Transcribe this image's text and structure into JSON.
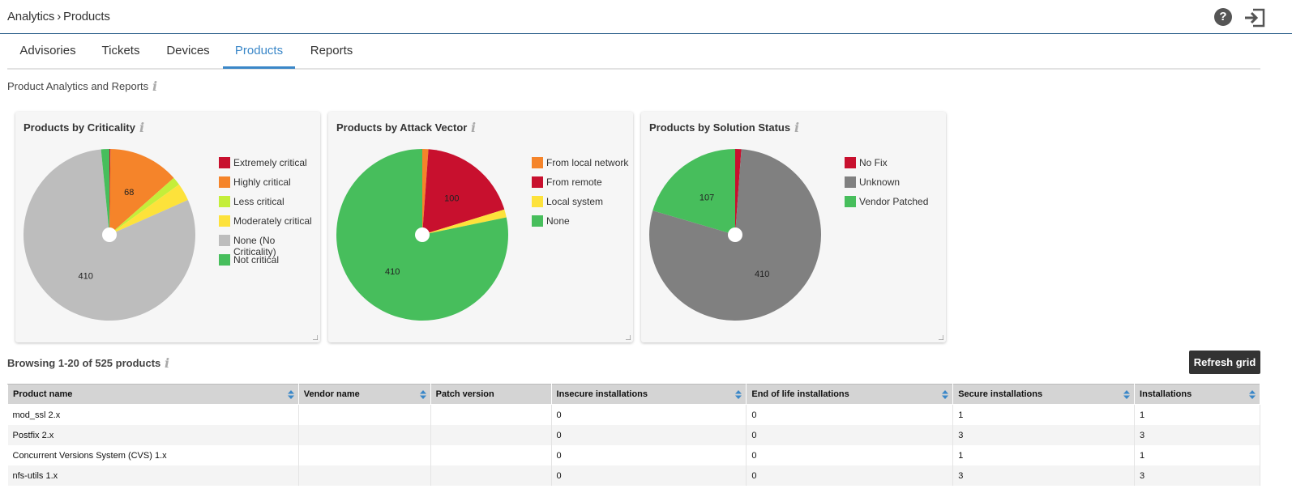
{
  "header": {
    "breadcrumb_root": "Analytics",
    "breadcrumb_sep": "›",
    "breadcrumb_current": "Products",
    "help_label": "?"
  },
  "tabs": [
    {
      "label": "Advisories"
    },
    {
      "label": "Tickets"
    },
    {
      "label": "Devices"
    },
    {
      "label": "Products",
      "active": true
    },
    {
      "label": "Reports"
    }
  ],
  "section_title": "Product Analytics and Reports",
  "charts": {
    "criticality": {
      "title": "Products by Criticality",
      "legend": [
        "Extremely critical",
        "Highly critical",
        "Less critical",
        "Moderately critical",
        "None (No Criticality)",
        "Not critical"
      ],
      "colors": [
        "#c8102e",
        "#f5842a",
        "#c4ee3a",
        "#fde23b",
        "#bdbdbd",
        "#47be5c"
      ]
    },
    "attack_vector": {
      "title": "Products by Attack Vector",
      "legend": [
        "From local network",
        "From remote",
        "Local system",
        "None"
      ],
      "colors": [
        "#f5842a",
        "#c8102e",
        "#fde23b",
        "#47be5c"
      ]
    },
    "solution_status": {
      "title": "Products by Solution Status",
      "legend": [
        "No Fix",
        "Unknown",
        "Vendor Patched"
      ],
      "colors": [
        "#c8102e",
        "#808080",
        "#47be5c"
      ]
    }
  },
  "chart_data": [
    {
      "type": "pie",
      "title": "Products by Criticality",
      "categories": [
        "Extremely critical",
        "Highly critical",
        "Less critical",
        "Moderately critical",
        "None (No Criticality)",
        "Not critical"
      ],
      "values": [
        1,
        68,
        8,
        17,
        410,
        8
      ],
      "data_labels": [
        "",
        "68",
        "",
        "",
        "410",
        ""
      ]
    },
    {
      "type": "pie",
      "title": "Products by Attack Vector",
      "categories": [
        "From local network",
        "From remote",
        "Local system",
        "None"
      ],
      "values": [
        6,
        100,
        8,
        410
      ],
      "data_labels": [
        "",
        "100",
        "",
        "410"
      ]
    },
    {
      "type": "pie",
      "title": "Products by Solution Status",
      "categories": [
        "No Fix",
        "Unknown",
        "Vendor Patched"
      ],
      "values": [
        6,
        410,
        107
      ],
      "data_labels": [
        "",
        "410",
        "107"
      ]
    }
  ],
  "browse_text": "Browsing 1-20 of 525 products",
  "refresh_label": "Refresh grid",
  "grid": {
    "columns": [
      "Product name",
      "Vendor name",
      "Patch version",
      "Insecure installations",
      "End of life installations",
      "Secure installations",
      "Installations"
    ],
    "rows": [
      [
        "mod_ssl 2.x",
        "",
        "",
        "0",
        "0",
        "1",
        "1"
      ],
      [
        "Postfix 2.x",
        "",
        "",
        "0",
        "0",
        "3",
        "3"
      ],
      [
        "Concurrent Versions System (CVS) 1.x",
        "",
        "",
        "0",
        "0",
        "1",
        "1"
      ],
      [
        "nfs-utils 1.x",
        "",
        "",
        "0",
        "0",
        "3",
        "3"
      ]
    ]
  }
}
